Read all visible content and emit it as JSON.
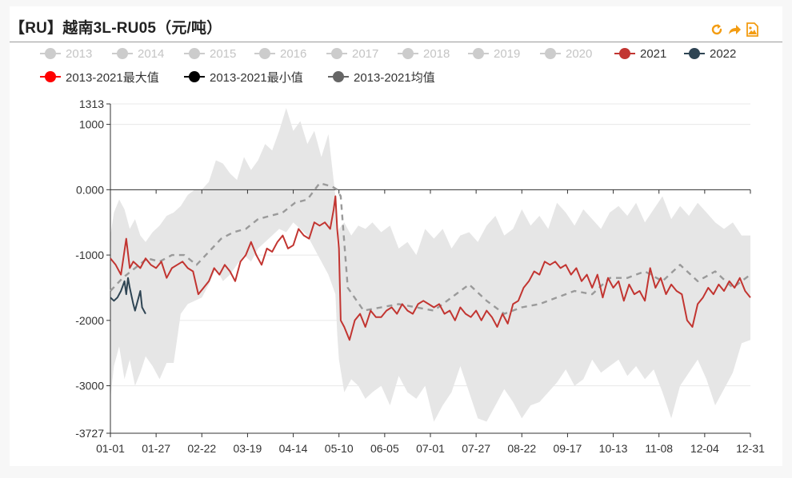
{
  "title": "【RU】越南3L-RU05（元/吨）",
  "toolbar": [
    {
      "name": "refresh-icon",
      "color": "#f39c12"
    },
    {
      "name": "share-icon",
      "color": "#f39c12"
    },
    {
      "name": "image-export-icon",
      "color": "#f39c12"
    }
  ],
  "legend": [
    {
      "label": "2013",
      "color": "#cccccc",
      "active": false
    },
    {
      "label": "2014",
      "color": "#cccccc",
      "active": false
    },
    {
      "label": "2015",
      "color": "#cccccc",
      "active": false
    },
    {
      "label": "2016",
      "color": "#cccccc",
      "active": false
    },
    {
      "label": "2017",
      "color": "#cccccc",
      "active": false
    },
    {
      "label": "2018",
      "color": "#cccccc",
      "active": false
    },
    {
      "label": "2019",
      "color": "#cccccc",
      "active": false
    },
    {
      "label": "2020",
      "color": "#cccccc",
      "active": false
    },
    {
      "label": "2021",
      "color": "#c23531",
      "active": true
    },
    {
      "label": "2022",
      "color": "#2f4554",
      "active": true
    },
    {
      "label": "2013-2021最大值",
      "color": "#ff0000",
      "active": true
    },
    {
      "label": "2013-2021最小值",
      "color": "#000000",
      "active": true
    },
    {
      "label": "2013-2021均值",
      "color": "#666666",
      "active": true
    }
  ],
  "chart_data": {
    "type": "line",
    "title": "【RU】越南3L-RU05（元/吨）",
    "x_ticks": [
      "01-01",
      "01-27",
      "02-22",
      "03-19",
      "04-14",
      "05-10",
      "06-05",
      "07-01",
      "07-27",
      "08-22",
      "09-17",
      "10-13",
      "11-08",
      "12-04",
      "12-31"
    ],
    "y_tick_labels": [
      "1313",
      "1000",
      "0.000",
      "-1000",
      "-2000",
      "-3000",
      "-3727"
    ],
    "y_tick_values": [
      1313,
      1000,
      0,
      -1000,
      -2000,
      -3000,
      -3727
    ],
    "ylim": [
      -3727,
      1313
    ],
    "grid": true,
    "band": {
      "name": "2013-2021最大值/最小值区间",
      "fill": "#e6e6e6",
      "x": [
        1,
        3,
        6,
        9,
        12,
        15,
        18,
        21,
        25,
        29,
        33,
        37,
        41,
        45,
        49,
        53,
        57,
        61,
        65,
        69,
        73,
        77,
        81,
        85,
        89,
        93,
        97,
        101,
        105,
        109,
        113,
        117,
        121,
        125,
        129,
        130,
        131,
        134,
        138,
        142,
        146,
        150,
        155,
        160,
        165,
        170,
        175,
        180,
        185,
        190,
        195,
        200,
        205,
        210,
        215,
        220,
        225,
        230,
        235,
        240,
        245,
        250,
        255,
        260,
        265,
        270,
        275,
        280,
        285,
        290,
        295,
        300,
        305,
        310,
        315,
        320,
        325,
        330,
        335,
        340,
        345,
        350,
        355,
        360,
        365
      ],
      "max": [
        -700,
        -350,
        -150,
        -300,
        -600,
        -450,
        -700,
        -800,
        -650,
        -550,
        -400,
        -350,
        -250,
        -80,
        0,
        0,
        120,
        450,
        400,
        250,
        150,
        500,
        300,
        450,
        700,
        600,
        900,
        1250,
        900,
        1050,
        700,
        900,
        500,
        850,
        -100,
        -900,
        -600,
        -500,
        -700,
        -550,
        -600,
        -500,
        -650,
        -550,
        -900,
        -800,
        -1000,
        -600,
        -750,
        -600,
        -900,
        -700,
        -650,
        -800,
        -550,
        -400,
        -700,
        -600,
        -300,
        -550,
        -400,
        -600,
        -200,
        -350,
        -550,
        -300,
        -450,
        -600,
        -350,
        -250,
        -400,
        -200,
        -500,
        -300,
        -100,
        -450,
        -250,
        -400,
        -200,
        -350,
        -500,
        -600,
        -500,
        -700,
        -700
      ],
      "min": [
        -3200,
        -2700,
        -2400,
        -2900,
        -2600,
        -3000,
        -2800,
        -2550,
        -2700,
        -2900,
        -2650,
        -2650,
        -1900,
        -1750,
        -1700,
        -1650,
        -1450,
        -1200,
        -1400,
        -1300,
        -1150,
        -1000,
        -1100,
        -900,
        -800,
        -700,
        -600,
        -650,
        -500,
        -600,
        -700,
        -900,
        -1100,
        -1300,
        -1600,
        -2200,
        -2600,
        -3100,
        -2900,
        -3000,
        -3200,
        -3100,
        -3000,
        -3300,
        -2850,
        -3100,
        -3200,
        -3000,
        -3550,
        -3300,
        -3100,
        -2700,
        -3100,
        -3500,
        -3550,
        -3300,
        -3050,
        -3250,
        -3500,
        -3300,
        -3250,
        -3100,
        -2950,
        -2750,
        -3000,
        -2900,
        -2600,
        -2800,
        -2700,
        -2600,
        -2850,
        -2700,
        -2900,
        -2750,
        -3100,
        -3500,
        -3000,
        -2800,
        -2600,
        -2900,
        -3300,
        -3050,
        -2800,
        -2350,
        -2300
      ]
    },
    "series": [
      {
        "name": "2013-2021均值",
        "color": "#9a9a9a",
        "dashed": true,
        "x": [
          1,
          8,
          15,
          22,
          29,
          36,
          43,
          50,
          57,
          64,
          71,
          78,
          85,
          92,
          99,
          106,
          113,
          120,
          127,
          130,
          132,
          136,
          145,
          155,
          165,
          175,
          185,
          195,
          205,
          215,
          225,
          235,
          245,
          255,
          265,
          275,
          285,
          295,
          305,
          315,
          325,
          335,
          345,
          355,
          365
        ],
        "y": [
          -1550,
          -1350,
          -1200,
          -1050,
          -1100,
          -1000,
          -1000,
          -1150,
          -950,
          -750,
          -650,
          -600,
          -450,
          -400,
          -350,
          -200,
          -150,
          100,
          50,
          0,
          -100,
          -1500,
          -1850,
          -1800,
          -1750,
          -1800,
          -1850,
          -1650,
          -1450,
          -1700,
          -1900,
          -1800,
          -1750,
          -1650,
          -1550,
          -1600,
          -1350,
          -1350,
          -1250,
          -1400,
          -1150,
          -1400,
          -1250,
          -1500,
          -1300
        ]
      },
      {
        "name": "2021",
        "color": "#c23531",
        "x": [
          1,
          4,
          7,
          10,
          12,
          14,
          16,
          18,
          21,
          24,
          27,
          30,
          33,
          36,
          39,
          42,
          45,
          48,
          51,
          54,
          57,
          60,
          63,
          66,
          69,
          72,
          75,
          78,
          81,
          84,
          87,
          90,
          93,
          96,
          99,
          102,
          105,
          108,
          111,
          114,
          117,
          120,
          123,
          126,
          128,
          129,
          130,
          131,
          132,
          134,
          137,
          140,
          143,
          146,
          149,
          152,
          155,
          158,
          161,
          164,
          167,
          170,
          173,
          176,
          179,
          182,
          185,
          188,
          191,
          194,
          197,
          200,
          203,
          206,
          209,
          212,
          215,
          218,
          221,
          224,
          227,
          230,
          233,
          236,
          239,
          242,
          245,
          248,
          251,
          254,
          257,
          260,
          263,
          266,
          269,
          272,
          275,
          278,
          281,
          284,
          287,
          290,
          293,
          296,
          299,
          302,
          305,
          308,
          311,
          314,
          317,
          320,
          323,
          326,
          329,
          332,
          335,
          338,
          341,
          344,
          347,
          350,
          353,
          356,
          359,
          362,
          365
        ],
        "y": [
          -1050,
          -1150,
          -1300,
          -750,
          -1200,
          -1100,
          -1150,
          -1200,
          -1050,
          -1150,
          -1200,
          -1100,
          -1350,
          -1200,
          -1150,
          -1100,
          -1200,
          -1250,
          -1600,
          -1500,
          -1400,
          -1200,
          -1300,
          -1150,
          -1250,
          -1400,
          -1100,
          -1000,
          -800,
          -1000,
          -1150,
          -900,
          -950,
          -800,
          -700,
          -900,
          -850,
          -600,
          -700,
          -750,
          -500,
          -550,
          -500,
          -600,
          -300,
          -100,
          -600,
          -900,
          -2000,
          -2100,
          -2300,
          -2000,
          -1900,
          -2100,
          -1850,
          -1950,
          -1950,
          -1850,
          -1800,
          -1900,
          -1750,
          -1850,
          -1900,
          -1750,
          -1700,
          -1750,
          -1800,
          -1750,
          -1900,
          -1850,
          -2000,
          -1800,
          -1900,
          -1950,
          -1850,
          -2000,
          -1850,
          -1950,
          -2100,
          -1900,
          -2050,
          -1750,
          -1700,
          -1500,
          -1400,
          -1250,
          -1300,
          -1100,
          -1150,
          -1100,
          -1200,
          -1150,
          -1300,
          -1200,
          -1400,
          -1300,
          -1500,
          -1300,
          -1650,
          -1350,
          -1500,
          -1400,
          -1700,
          -1450,
          -1600,
          -1550,
          -1700,
          -1200,
          -1500,
          -1350,
          -1600,
          -1450,
          -1550,
          -1600,
          -2000,
          -2100,
          -1750,
          -1650,
          -1500,
          -1600,
          -1450,
          -1550,
          -1400,
          -1500,
          -1350,
          -1550,
          -1650
        ]
      },
      {
        "name": "2022",
        "color": "#2f4554",
        "x": [
          1,
          3,
          5,
          7,
          9,
          10,
          11,
          12,
          14,
          15,
          17,
          18,
          19,
          21
        ],
        "y": [
          -1650,
          -1700,
          -1650,
          -1550,
          -1400,
          -1600,
          -1350,
          -1500,
          -1750,
          -1850,
          -1650,
          -1550,
          -1800,
          -1900
        ]
      }
    ]
  }
}
